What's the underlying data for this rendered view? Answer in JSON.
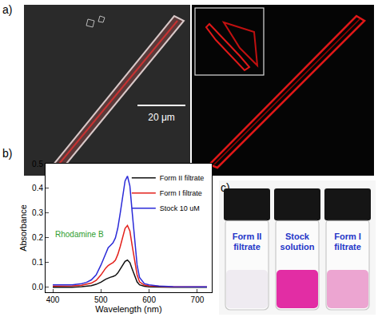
{
  "panel_a": {
    "label": "a)",
    "scale_bar": "20 μm"
  },
  "chart_data": {
    "label": "b)",
    "type": "line",
    "x_label": "Wavelength (nm)",
    "y_label": "Absorbance",
    "xlim": [
      385,
      730
    ],
    "xticks": [
      400,
      500,
      600,
      700
    ],
    "ylim": [
      -0.02,
      0.5
    ],
    "yticks": [
      {
        "value": 0,
        "label": "0.0"
      },
      0.1,
      0.2,
      0.3,
      0.4,
      0.5
    ],
    "grid": false,
    "legend": "upper right",
    "annotations": [
      {
        "text": "Rhodamine B"
      }
    ],
    "x": [
      400,
      420,
      440,
      460,
      470,
      480,
      490,
      500,
      510,
      515,
      520,
      525,
      530,
      535,
      540,
      545,
      550,
      555,
      560,
      565,
      570,
      575,
      580,
      590,
      600,
      620,
      650,
      700,
      720
    ],
    "series": [
      {
        "name": "Form II filtrate",
        "color": "#111111",
        "values": [
          0.0,
          0.0,
          0.0,
          0.003,
          0.005,
          0.007,
          0.012,
          0.021,
          0.033,
          0.038,
          0.041,
          0.044,
          0.048,
          0.058,
          0.073,
          0.09,
          0.105,
          0.11,
          0.1,
          0.073,
          0.044,
          0.022,
          0.01,
          0.004,
          0.002,
          0.001,
          0.0,
          0.0,
          0.0
        ]
      },
      {
        "name": "Form I filtrate",
        "color": "#e3201b",
        "values": [
          0.005,
          0.005,
          0.006,
          0.008,
          0.012,
          0.017,
          0.028,
          0.05,
          0.078,
          0.088,
          0.094,
          0.1,
          0.11,
          0.133,
          0.165,
          0.205,
          0.238,
          0.25,
          0.228,
          0.166,
          0.1,
          0.05,
          0.022,
          0.009,
          0.006,
          0.004,
          0.002,
          0.002,
          0.002
        ]
      },
      {
        "name": "Stock 10 uM",
        "color": "#2b2bd8",
        "values": [
          0.01,
          0.01,
          0.01,
          0.015,
          0.02,
          0.03,
          0.05,
          0.09,
          0.14,
          0.16,
          0.17,
          0.18,
          0.2,
          0.24,
          0.3,
          0.37,
          0.43,
          0.45,
          0.41,
          0.3,
          0.18,
          0.09,
          0.04,
          0.015,
          0.01,
          0.005,
          0.003,
          0.002,
          0.002
        ]
      }
    ]
  },
  "panel_c": {
    "label": "c)",
    "vials": [
      {
        "lines": [
          "Form II",
          "filtrate"
        ],
        "color": "#eeeaf0"
      },
      {
        "lines": [
          "Stock",
          "solution"
        ],
        "color": "#e0229f"
      },
      {
        "lines": [
          "Form I",
          "filtrate"
        ],
        "color": "#eba0cf"
      }
    ]
  }
}
